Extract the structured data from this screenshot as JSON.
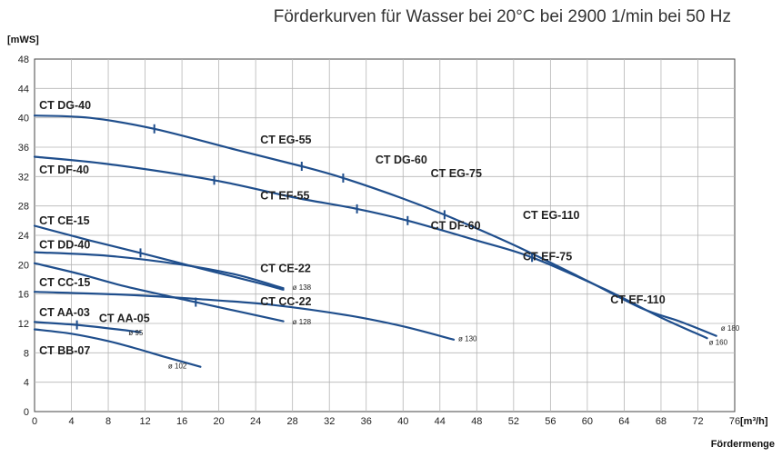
{
  "title": "Förderkurven für Wasser bei 20°C bei 2900 1/min bei 50 Hz",
  "chart_data": {
    "type": "line",
    "title": "Förderkurven für Wasser bei 20°C bei 2900 1/min bei 50 Hz",
    "xlabel": "Fördermenge",
    "xunit": "[m³/h]",
    "yunit": "[mWS]",
    "xlim": [
      0,
      76
    ],
    "ylim": [
      0,
      48
    ],
    "xticks": [
      0,
      4,
      8,
      12,
      16,
      20,
      24,
      28,
      32,
      36,
      40,
      44,
      48,
      52,
      56,
      60,
      64,
      68,
      72,
      76
    ],
    "yticks": [
      0,
      4,
      8,
      12,
      16,
      20,
      24,
      28,
      32,
      36,
      40,
      44,
      48
    ],
    "grid": true,
    "colors": {
      "curve": "#1f4e8c",
      "grid": "#b5b5b5",
      "text": "#222222"
    },
    "series": [
      {
        "name": "ø 180",
        "points": [
          [
            0,
            40.3
          ],
          [
            6,
            40.0
          ],
          [
            13,
            38.5
          ],
          [
            22,
            35.6
          ],
          [
            29,
            33.4
          ],
          [
            33.5,
            31.8
          ],
          [
            40,
            29.0
          ],
          [
            44.5,
            26.8
          ],
          [
            52,
            22.7
          ],
          [
            60,
            17.8
          ],
          [
            66,
            14.0
          ],
          [
            70,
            12.3
          ],
          [
            74,
            10.3
          ]
        ]
      },
      {
        "name": "ø 160",
        "points": [
          [
            0,
            34.7
          ],
          [
            8,
            33.7
          ],
          [
            19.5,
            31.5
          ],
          [
            28,
            29.2
          ],
          [
            35,
            27.6
          ],
          [
            40.5,
            26.0
          ],
          [
            48,
            23.3
          ],
          [
            54,
            21.0
          ],
          [
            62,
            16.6
          ],
          [
            68,
            12.8
          ],
          [
            73,
            10.0
          ]
        ]
      },
      {
        "name": "ø 138",
        "points": [
          [
            0,
            25.3
          ],
          [
            6,
            23.3
          ],
          [
            11.5,
            21.6
          ],
          [
            18,
            19.5
          ],
          [
            24,
            17.6
          ],
          [
            27,
            16.6
          ]
        ]
      },
      {
        "name": "",
        "points": [
          [
            0,
            21.7
          ],
          [
            8,
            21.2
          ],
          [
            16,
            20.0
          ],
          [
            22,
            18.6
          ],
          [
            27,
            16.8
          ]
        ]
      },
      {
        "name": "ø 130",
        "points": [
          [
            0,
            16.3
          ],
          [
            10,
            15.9
          ],
          [
            18,
            15.3
          ],
          [
            26,
            14.5
          ],
          [
            34,
            13.1
          ],
          [
            40,
            11.6
          ],
          [
            45.5,
            9.8
          ]
        ]
      },
      {
        "name": "ø 128",
        "points": [
          [
            0,
            20.2
          ],
          [
            5,
            18.7
          ],
          [
            10,
            17.0
          ],
          [
            17.5,
            14.9
          ],
          [
            23,
            13.4
          ],
          [
            27,
            12.3
          ]
        ]
      },
      {
        "name": "ø 95",
        "points": [
          [
            0,
            12.2
          ],
          [
            4.6,
            11.8
          ],
          [
            9,
            11.2
          ],
          [
            11.5,
            10.8
          ]
        ]
      },
      {
        "name": "ø 102",
        "points": [
          [
            0,
            11.2
          ],
          [
            4,
            10.6
          ],
          [
            8,
            9.6
          ],
          [
            11,
            8.6
          ],
          [
            14,
            7.5
          ],
          [
            18,
            6.1
          ]
        ]
      }
    ],
    "markers": [
      [
        13,
        38.5
      ],
      [
        29,
        33.4
      ],
      [
        33.5,
        31.8
      ],
      [
        44.5,
        26.8
      ],
      [
        19.5,
        31.5
      ],
      [
        35,
        27.6
      ],
      [
        40.5,
        26.0
      ],
      [
        54,
        21.0
      ],
      [
        11.5,
        21.6
      ],
      [
        17.5,
        14.9
      ],
      [
        4.6,
        11.8
      ]
    ],
    "curve_labels": [
      {
        "text": "CT DG-40",
        "x": 0.5,
        "y": 41.2
      },
      {
        "text": "CT EG-55",
        "x": 24.5,
        "y": 36.5
      },
      {
        "text": "CT DG-60",
        "x": 37,
        "y": 33.8
      },
      {
        "text": "CT EG-75",
        "x": 43,
        "y": 31.9
      },
      {
        "text": "CT DF-40",
        "x": 0.5,
        "y": 32.4
      },
      {
        "text": "CT EF-55",
        "x": 24.5,
        "y": 28.9
      },
      {
        "text": "CT DF-60",
        "x": 43,
        "y": 24.8
      },
      {
        "text": "CT EG-110",
        "x": 53,
        "y": 26.2
      },
      {
        "text": "CT CE-15",
        "x": 0.5,
        "y": 25.5
      },
      {
        "text": "CT DD-40",
        "x": 0.5,
        "y": 22.2
      },
      {
        "text": "CT CE-22",
        "x": 24.5,
        "y": 19.0
      },
      {
        "text": "CT EF-75",
        "x": 53,
        "y": 20.6
      },
      {
        "text": "CT CC-15",
        "x": 0.5,
        "y": 17.1
      },
      {
        "text": "CT CC-22",
        "x": 24.5,
        "y": 14.5
      },
      {
        "text": "CT EF-110",
        "x": 62.5,
        "y": 14.7
      },
      {
        "text": "CT AA-03",
        "x": 0.5,
        "y": 13.0
      },
      {
        "text": "CT AA-05",
        "x": 7,
        "y": 12.2
      },
      {
        "text": "CT BB-07",
        "x": 0.5,
        "y": 7.8
      }
    ],
    "dia_labels": [
      {
        "text": "ø 138",
        "x": 28,
        "y": 16.6
      },
      {
        "text": "ø 128",
        "x": 28,
        "y": 11.9
      },
      {
        "text": "ø 95",
        "x": 10.2,
        "y": 10.4
      },
      {
        "text": "ø 130",
        "x": 46,
        "y": 9.6
      },
      {
        "text": "ø 102",
        "x": 14.5,
        "y": 5.9
      },
      {
        "text": "ø 180",
        "x": 74.5,
        "y": 11.0
      },
      {
        "text": "ø 160",
        "x": 73.2,
        "y": 9.1
      }
    ]
  }
}
